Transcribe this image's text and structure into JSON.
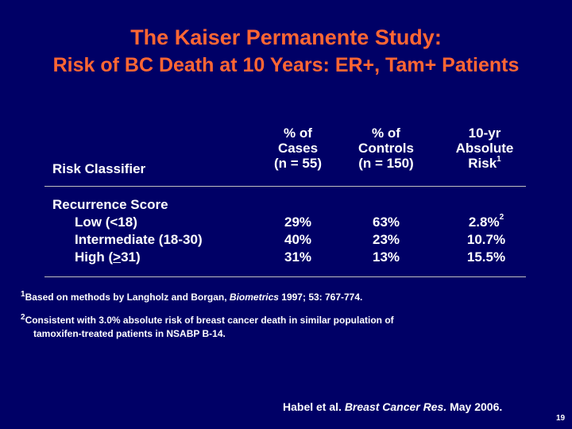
{
  "title": {
    "line1": "The Kaiser Permanente Study:",
    "line2": "Risk of BC Death at 10 Years: ER+, Tam+ Patients"
  },
  "table": {
    "headers": {
      "risk_classifier": "Risk Classifier",
      "cases": [
        "% of",
        "Cases",
        "(n = 55)"
      ],
      "controls": [
        "% of",
        "Controls",
        "(n = 150)"
      ],
      "absolute_risk": [
        "10-yr",
        "Absolute",
        "Risk"
      ],
      "absolute_risk_sup": "1"
    },
    "group_label": "Recurrence Score",
    "rows": [
      {
        "label": "Low (<18)",
        "cases": "29%",
        "controls": "63%",
        "absolute": "2.8%",
        "absolute_sup": "2"
      },
      {
        "label": "Intermediate (18-30)",
        "cases": "40%",
        "controls": "23%",
        "absolute": "10.7%"
      },
      {
        "label_prefix": "High (",
        "label_underlined": ">",
        "label_suffix": "31)",
        "cases": "31%",
        "controls": "13%",
        "absolute": "15.5%"
      }
    ]
  },
  "footnotes": {
    "fn1_sup": "1",
    "fn1_text": "Based on methods by Langholz and Borgan, ",
    "fn1_journal": "Biometrics",
    "fn1_ref": " 1997; 53: 767-774.",
    "fn2_sup": "2",
    "fn2_line1": "Consistent with 3.0% absolute risk of breast cancer death in similar population of",
    "fn2_line2": "tamoxifen-treated patients in NSABP B-14."
  },
  "citation": {
    "authors": "Habel et al. ",
    "journal": "Breast Cancer Res.",
    "date": " May 2006."
  },
  "page_number": "19",
  "colors": {
    "background": "#000066",
    "title": "#ff6633",
    "text": "#ffffff"
  }
}
